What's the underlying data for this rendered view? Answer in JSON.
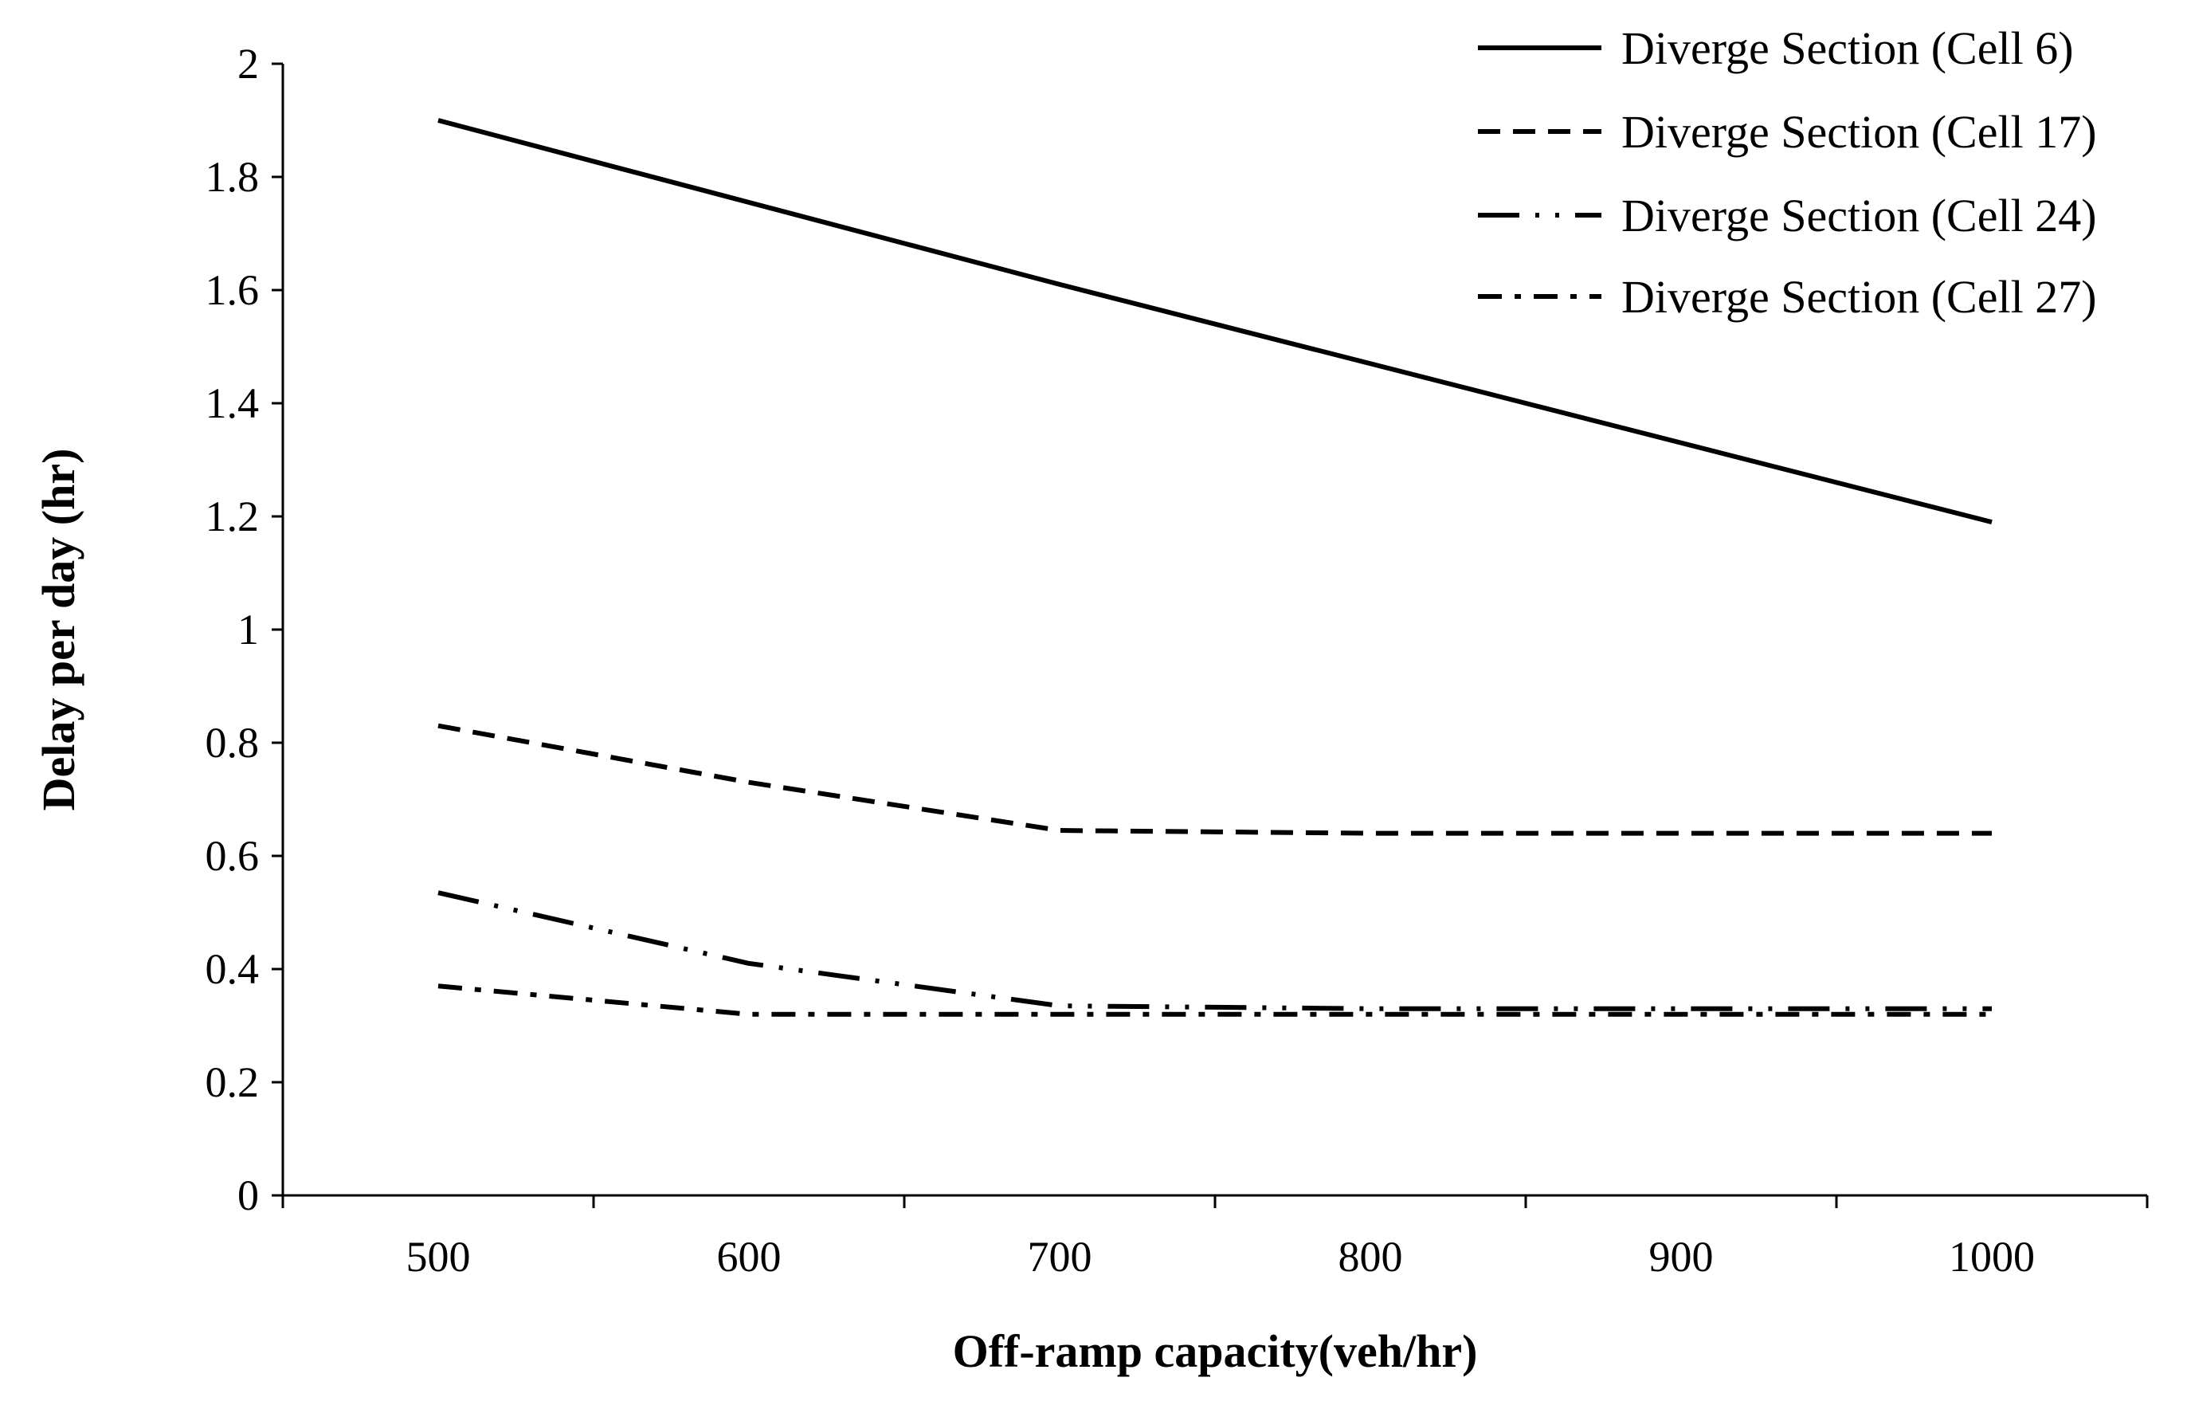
{
  "chart_data": {
    "type": "line",
    "title": "",
    "xlabel": "Off-ramp capacity(veh/hr)",
    "ylabel": "Delay  per day (hr)",
    "xlim": [
      450,
      1050
    ],
    "ylim": [
      0,
      2
    ],
    "x_ticks": [
      500,
      600,
      700,
      800,
      900,
      1000
    ],
    "x_tick_labels": [
      "500",
      "600",
      "700",
      "800",
      "900",
      "1000"
    ],
    "y_ticks": [
      0,
      0.2,
      0.4,
      0.6,
      0.8,
      1,
      1.2,
      1.4,
      1.6,
      1.8,
      2
    ],
    "y_tick_labels": [
      "0",
      "0.2",
      "0.4",
      "0.6",
      "0.8",
      "1",
      "1.2",
      "1.4",
      "1.6",
      "1.8",
      "2"
    ],
    "grid": false,
    "legend_position": "top-right",
    "series": [
      {
        "name": "Diverge Section (Cell 6)",
        "style": "solid",
        "x": [
          500,
          700,
          1000
        ],
        "values": [
          1.9,
          1.61,
          1.19
        ]
      },
      {
        "name": "Diverge Section (Cell 17)",
        "style": "dashed",
        "x": [
          500,
          600,
          700,
          800,
          900,
          1000
        ],
        "values": [
          0.83,
          0.73,
          0.645,
          0.64,
          0.64,
          0.64
        ]
      },
      {
        "name": "Diverge Section (Cell 24)",
        "style": "dash-dot-dot",
        "x": [
          500,
          600,
          700,
          800,
          900,
          1000
        ],
        "values": [
          0.535,
          0.41,
          0.335,
          0.33,
          0.33,
          0.33
        ]
      },
      {
        "name": "Diverge Section (Cell 27)",
        "style": "dash-dot",
        "x": [
          500,
          600,
          700,
          800,
          900,
          1000
        ],
        "values": [
          0.37,
          0.32,
          0.32,
          0.32,
          0.32,
          0.32
        ]
      }
    ]
  }
}
